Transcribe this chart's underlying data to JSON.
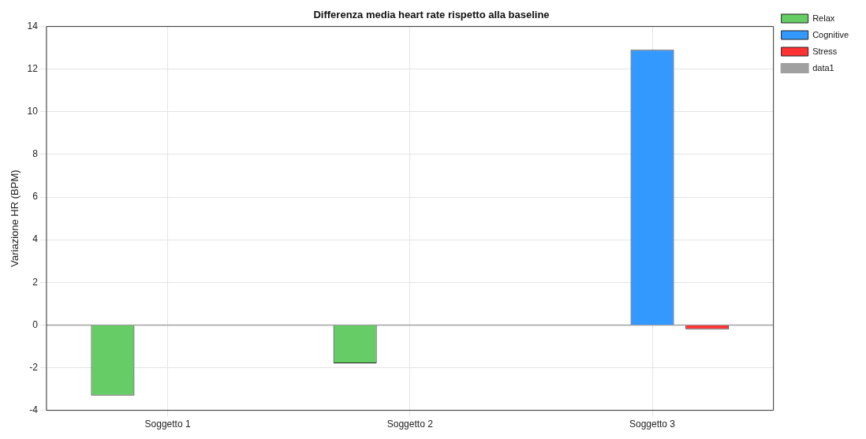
{
  "chart_data": {
    "type": "bar",
    "title": "Differenza media heart rate rispetto alla baseline",
    "ylabel": "Variazione HR (BPM)",
    "categories": [
      "Soggetto 1",
      "Soggetto 2",
      "Soggetto 3"
    ],
    "series": [
      {
        "name": "Relax",
        "color": "#66cc66",
        "values": [
          -3.3,
          -1.8,
          null
        ]
      },
      {
        "name": "Cognitive",
        "color": "#3399ff",
        "values": [
          null,
          null,
          12.9
        ]
      },
      {
        "name": "Stress",
        "color": "#ff3333",
        "values": [
          null,
          null,
          -0.2
        ]
      }
    ],
    "ylim": [
      -4,
      14
    ],
    "yticks": [
      -4,
      -2,
      0,
      2,
      4,
      6,
      8,
      10,
      12,
      14
    ],
    "ref_lines": [
      {
        "axis": "y",
        "value": 0,
        "label": "data1",
        "color": "#a0a0a0"
      }
    ],
    "grid": true,
    "legend": "top right"
  }
}
